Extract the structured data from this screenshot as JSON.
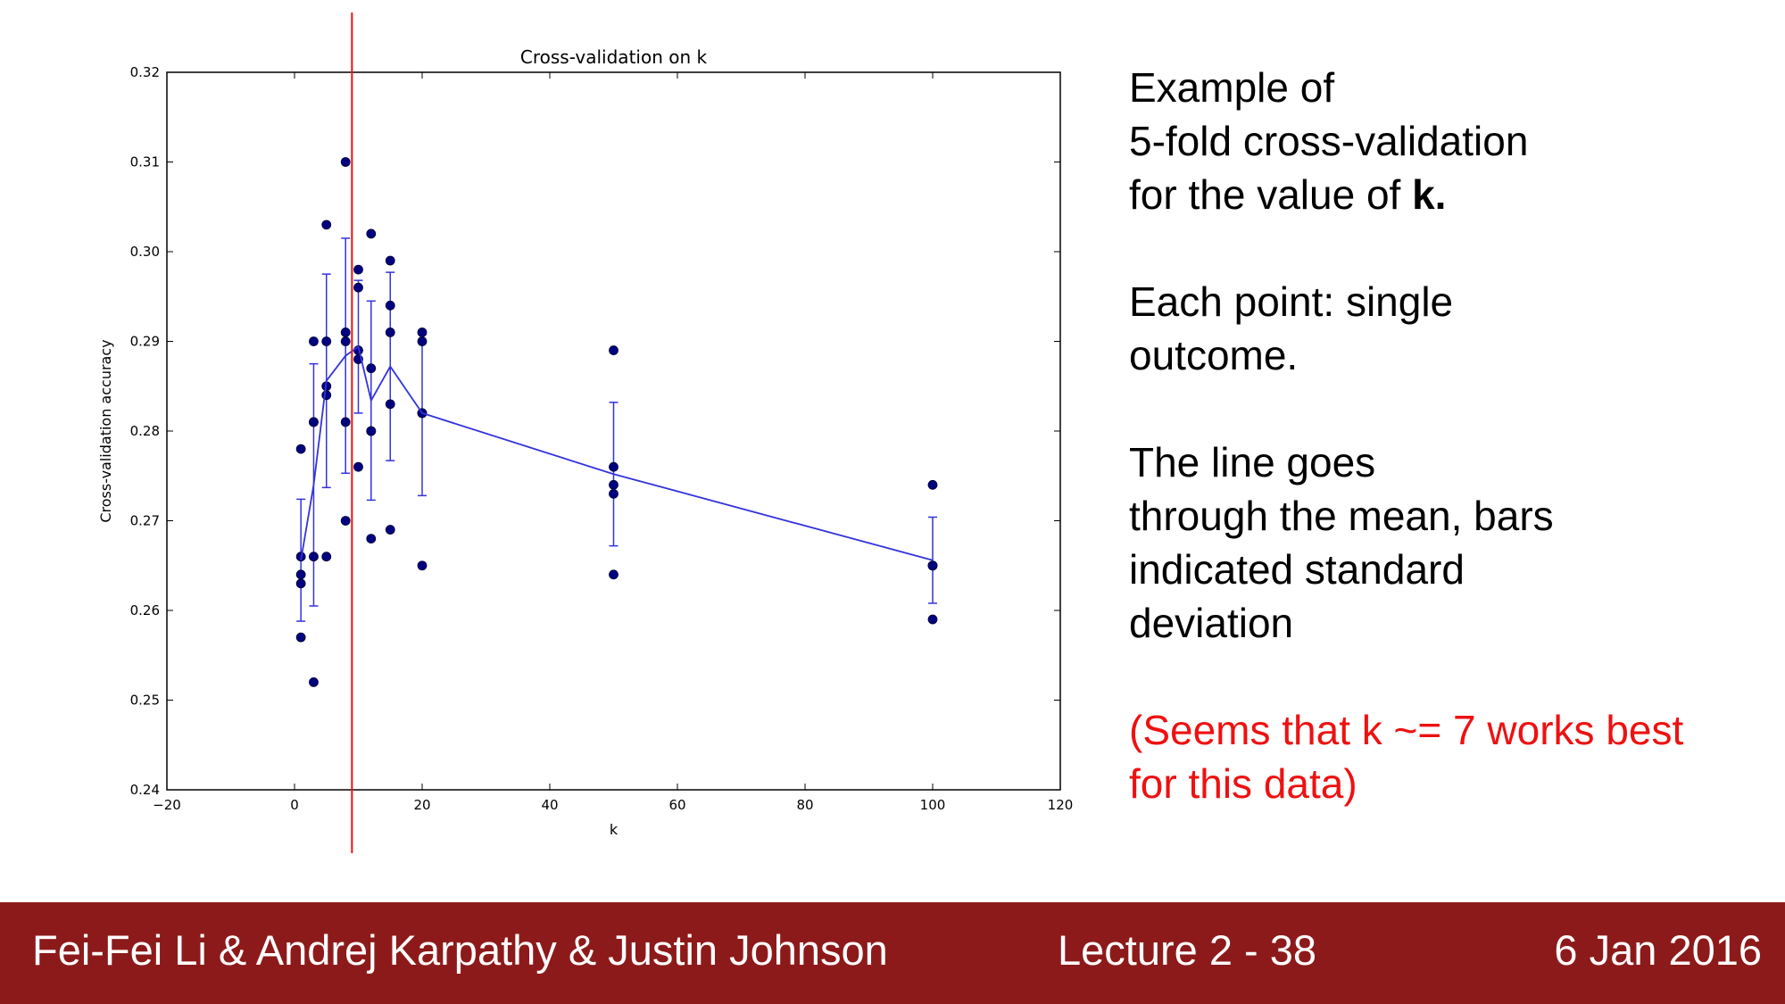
{
  "chart_data": {
    "type": "scatter",
    "title": "Cross-validation on k",
    "xlabel": "k",
    "ylabel": "Cross-validation accuracy",
    "xlim": [
      -20,
      120
    ],
    "ylim": [
      0.24,
      0.32
    ],
    "xticks": [
      -20,
      0,
      20,
      40,
      60,
      80,
      100,
      120
    ],
    "xtick_labels": [
      "−20",
      "0",
      "20",
      "40",
      "60",
      "80",
      "100",
      "120"
    ],
    "yticks": [
      0.24,
      0.25,
      0.26,
      0.27,
      0.28,
      0.29,
      0.3,
      0.31,
      0.32
    ],
    "ytick_labels": [
      "0.24",
      "0.25",
      "0.26",
      "0.27",
      "0.28",
      "0.29",
      "0.30",
      "0.31",
      "0.32"
    ],
    "grid": false,
    "points": [
      {
        "k": 1,
        "acc": 0.263
      },
      {
        "k": 1,
        "acc": 0.257
      },
      {
        "k": 1,
        "acc": 0.264
      },
      {
        "k": 1,
        "acc": 0.278
      },
      {
        "k": 1,
        "acc": 0.266
      },
      {
        "k": 3,
        "acc": 0.29
      },
      {
        "k": 3,
        "acc": 0.281
      },
      {
        "k": 3,
        "acc": 0.266
      },
      {
        "k": 3,
        "acc": 0.252
      },
      {
        "k": 3,
        "acc": 0.281
      },
      {
        "k": 5,
        "acc": 0.303
      },
      {
        "k": 5,
        "acc": 0.29
      },
      {
        "k": 5,
        "acc": 0.285
      },
      {
        "k": 5,
        "acc": 0.284
      },
      {
        "k": 5,
        "acc": 0.266
      },
      {
        "k": 8,
        "acc": 0.31
      },
      {
        "k": 8,
        "acc": 0.291
      },
      {
        "k": 8,
        "acc": 0.29
      },
      {
        "k": 8,
        "acc": 0.281
      },
      {
        "k": 8,
        "acc": 0.27
      },
      {
        "k": 10,
        "acc": 0.298
      },
      {
        "k": 10,
        "acc": 0.296
      },
      {
        "k": 10,
        "acc": 0.289
      },
      {
        "k": 10,
        "acc": 0.288
      },
      {
        "k": 10,
        "acc": 0.276
      },
      {
        "k": 12,
        "acc": 0.302
      },
      {
        "k": 12,
        "acc": 0.287
      },
      {
        "k": 12,
        "acc": 0.28
      },
      {
        "k": 12,
        "acc": 0.28
      },
      {
        "k": 12,
        "acc": 0.268
      },
      {
        "k": 15,
        "acc": 0.299
      },
      {
        "k": 15,
        "acc": 0.294
      },
      {
        "k": 15,
        "acc": 0.291
      },
      {
        "k": 15,
        "acc": 0.283
      },
      {
        "k": 15,
        "acc": 0.269
      },
      {
        "k": 20,
        "acc": 0.291
      },
      {
        "k": 20,
        "acc": 0.29
      },
      {
        "k": 20,
        "acc": 0.282
      },
      {
        "k": 20,
        "acc": 0.282
      },
      {
        "k": 20,
        "acc": 0.265
      },
      {
        "k": 50,
        "acc": 0.289
      },
      {
        "k": 50,
        "acc": 0.276
      },
      {
        "k": 50,
        "acc": 0.274
      },
      {
        "k": 50,
        "acc": 0.273
      },
      {
        "k": 50,
        "acc": 0.264
      },
      {
        "k": 100,
        "acc": 0.274
      },
      {
        "k": 100,
        "acc": 0.265
      },
      {
        "k": 100,
        "acc": 0.265
      },
      {
        "k": 100,
        "acc": 0.265
      },
      {
        "k": 100,
        "acc": 0.259
      }
    ],
    "mean_line": {
      "k": [
        1,
        3,
        5,
        8,
        10,
        12,
        15,
        20,
        50,
        100
      ],
      "mean": [
        0.2656,
        0.274,
        0.2856,
        0.2884,
        0.2894,
        0.2834,
        0.2872,
        0.282,
        0.2752,
        0.2656
      ],
      "std": [
        0.0068,
        0.0135,
        0.0119,
        0.0131,
        0.0074,
        0.0111,
        0.0105,
        0.0092,
        0.008,
        0.0048
      ]
    },
    "vertical_marker_k": 9,
    "colors": {
      "points": "#000080",
      "mean_line": "#3333dd",
      "marker": "#ee1111"
    }
  },
  "side_text": {
    "para1_line1": "Example of",
    "para1_line2": "5-fold cross-validation",
    "para1_line3_prefix": "for the value of ",
    "para1_line3_bold": "k.",
    "para2_line1": "Each point: single",
    "para2_line2": "outcome.",
    "para3_line1": "The line goes",
    "para3_line2": "through the mean, bars",
    "para3_line3": "indicated standard",
    "para3_line4": "deviation",
    "para4_line1": "(Seems that k ~= 7 works best",
    "para4_line2": "for this data)"
  },
  "footer": {
    "authors": "Fei-Fei Li & Andrej Karpathy & Justin Johnson",
    "lecture": "Lecture 2 - 38",
    "date": "6 Jan 2016",
    "background_color": "#8d1a1a"
  }
}
